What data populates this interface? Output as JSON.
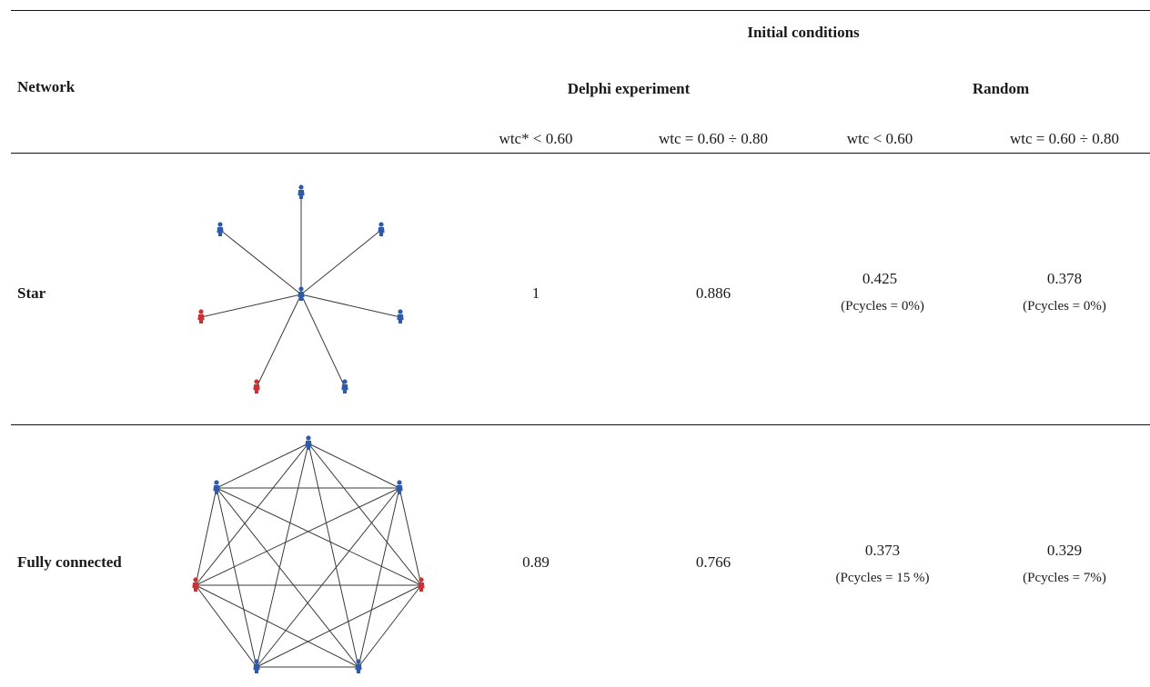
{
  "header": {
    "group_title": "Initial conditions",
    "network_label": "Network",
    "delphi_label": "Delphi experiment",
    "random_label": "Random",
    "columns": [
      "wtc* < 0.60",
      "wtc = 0.60 ÷ 0.80",
      "wtc < 0.60",
      "wtc = 0.60 ÷ 0.80"
    ]
  },
  "rows": [
    {
      "network": "Star",
      "values": [
        "1",
        "0.886",
        "0.425",
        "0.378"
      ],
      "notes": [
        "",
        "",
        "(Pcycles = 0%)",
        "(Pcycles = 0%)"
      ]
    },
    {
      "network": "Fully connected",
      "values": [
        "0.89",
        "0.766",
        "0.373",
        "0.329"
      ],
      "notes": [
        "",
        "",
        "(Pcycles = 15 %)",
        "(Pcycles = 7%)"
      ]
    }
  ],
  "colors": {
    "node_blue": "#2e5aa8",
    "node_red": "#c83232",
    "rule": "#111111"
  },
  "icons": {
    "node": "person-icon"
  }
}
